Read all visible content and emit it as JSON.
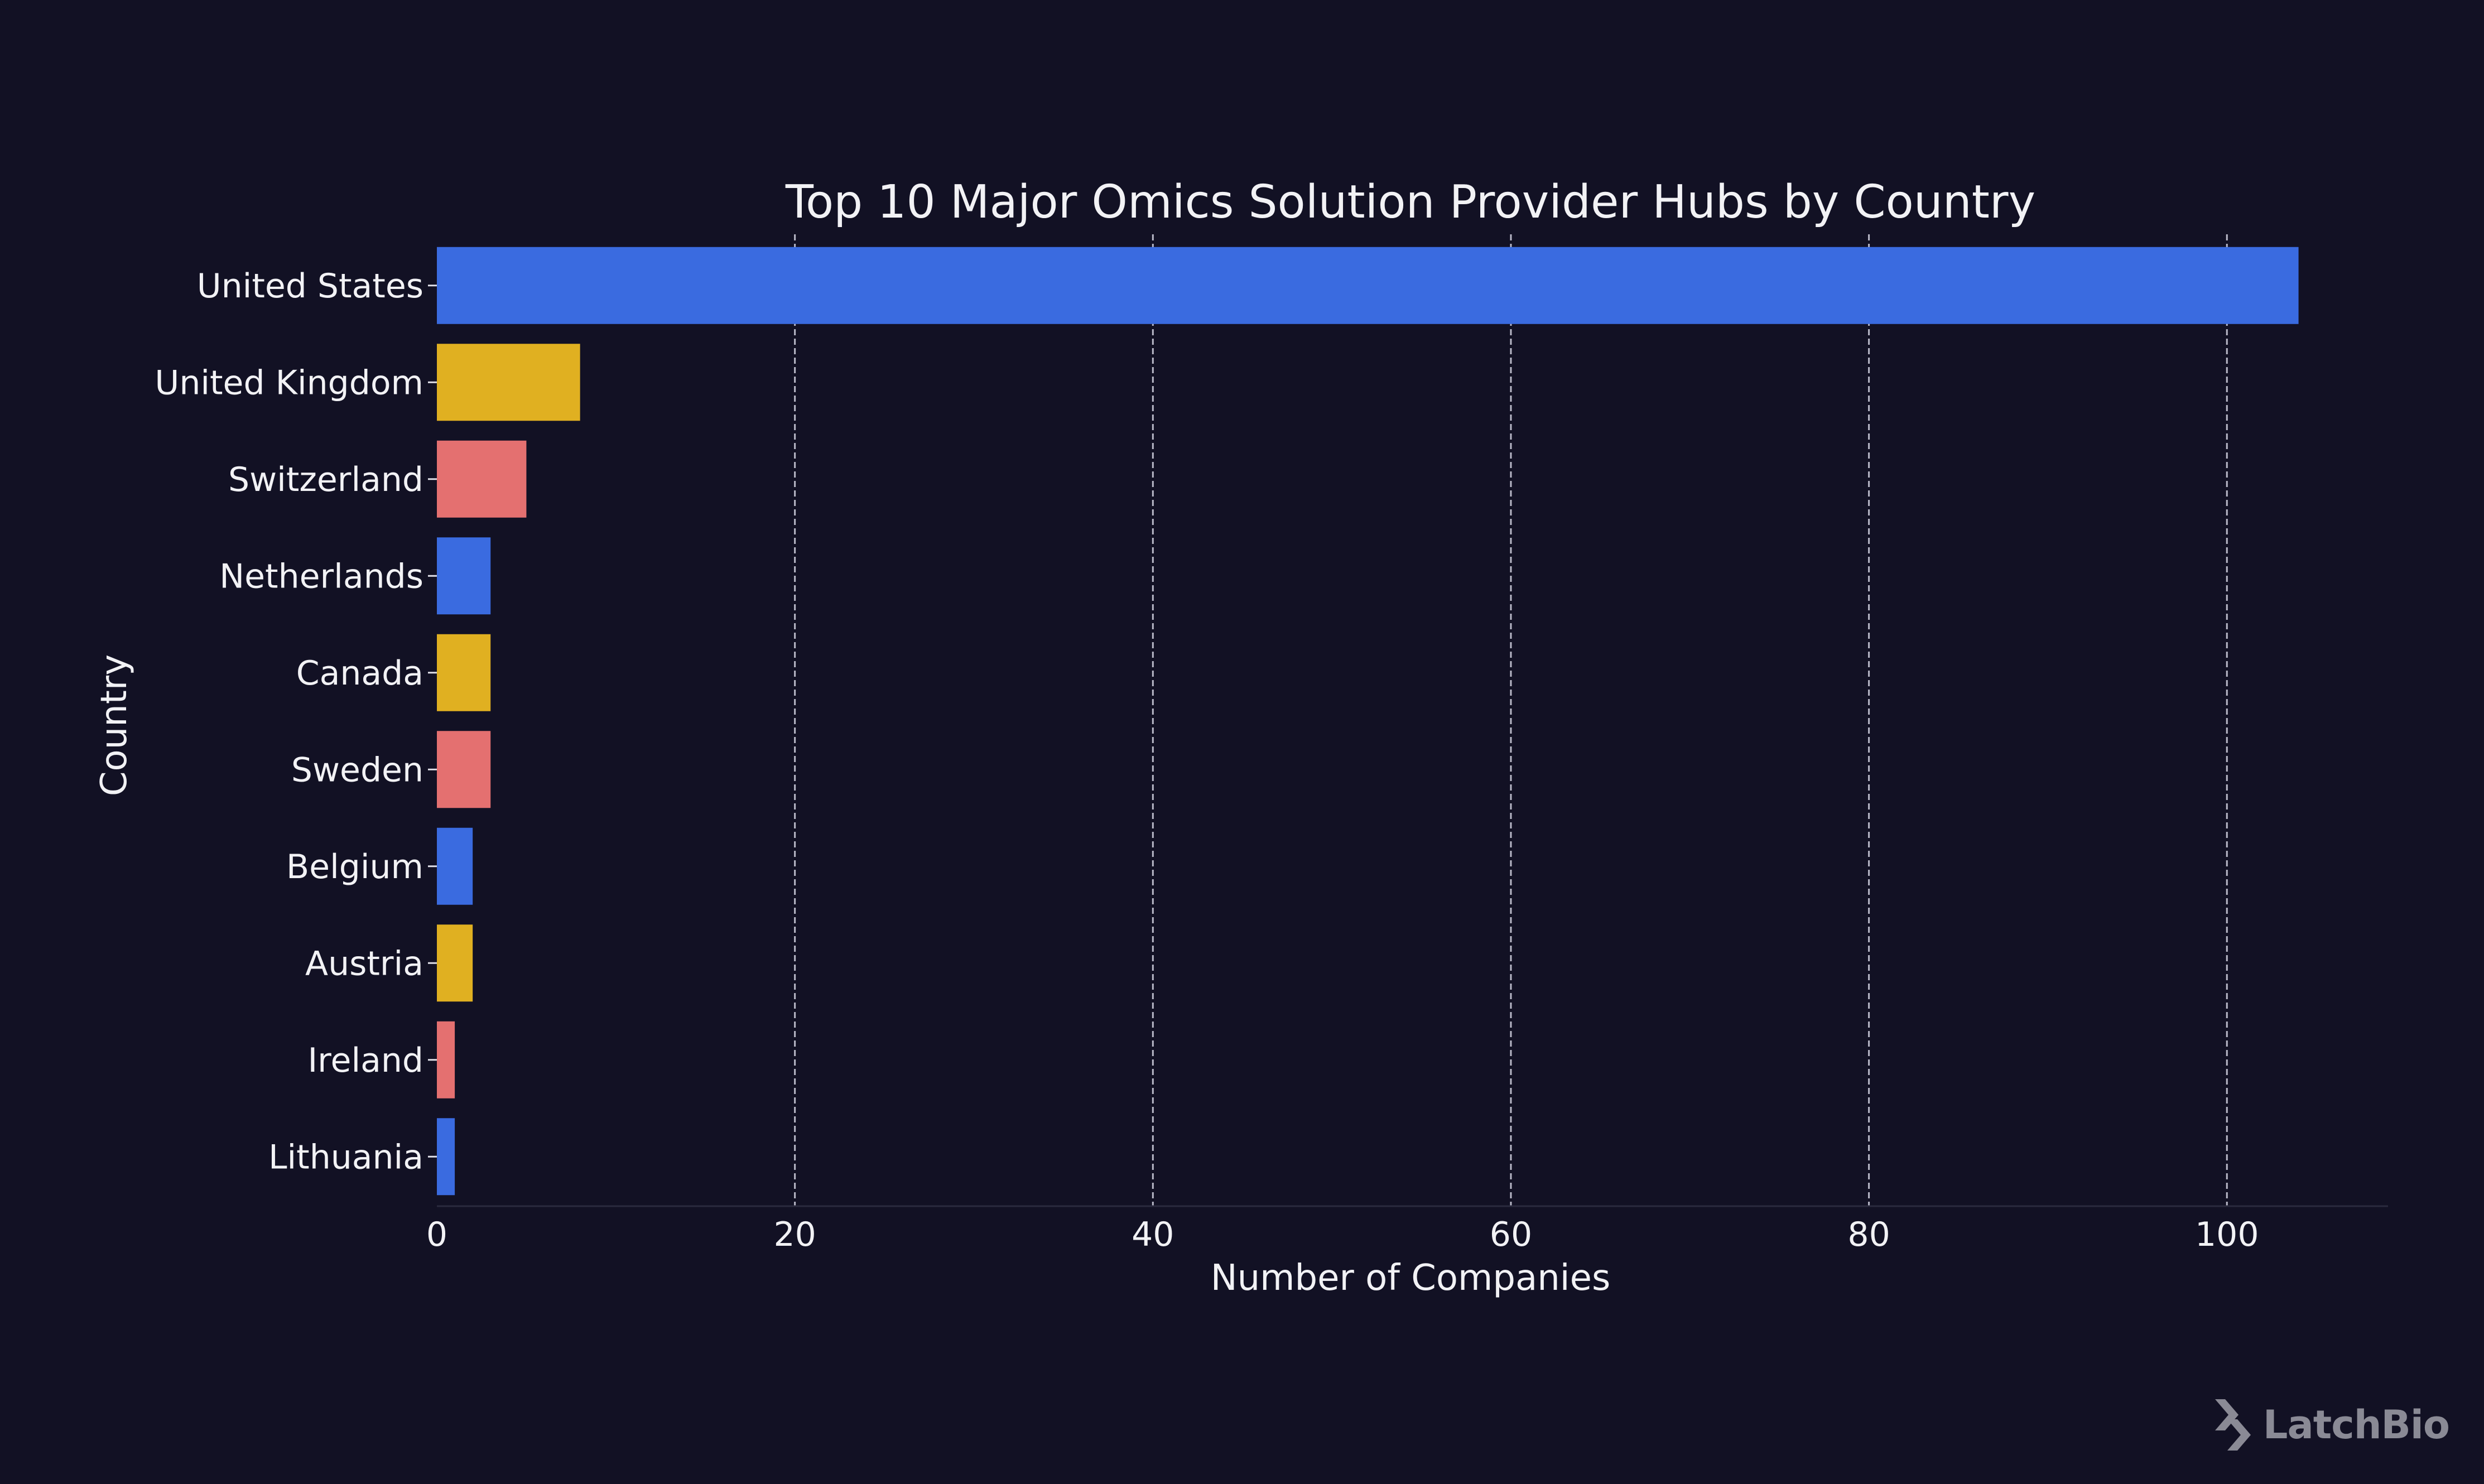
{
  "colors": {
    "background": "#121124",
    "bar_palette": [
      "#3a6be0",
      "#e0b021",
      "#e47070"
    ],
    "grid": "#b9b9c8",
    "text": "#f2f2f5",
    "watermark": "#8a8a95"
  },
  "watermark": {
    "text": "LatchBio",
    "icon": "latchbio-logo-icon"
  },
  "chart_data": {
    "type": "bar",
    "orientation": "horizontal",
    "title": "Top 10 Major Omics Solution Provider Hubs by Country",
    "xlabel": "Number of Companies",
    "ylabel": "Country",
    "xlim": [
      0,
      109
    ],
    "xticks": [
      0,
      20,
      40,
      60,
      80,
      100
    ],
    "grid": "x dashed",
    "categories": [
      "United States",
      "United Kingdom",
      "Switzerland",
      "Netherlands",
      "Canada",
      "Sweden",
      "Belgium",
      "Austria",
      "Ireland",
      "Lithuania"
    ],
    "values": [
      104,
      8,
      5,
      3,
      3,
      3,
      2,
      2,
      1,
      1
    ]
  }
}
